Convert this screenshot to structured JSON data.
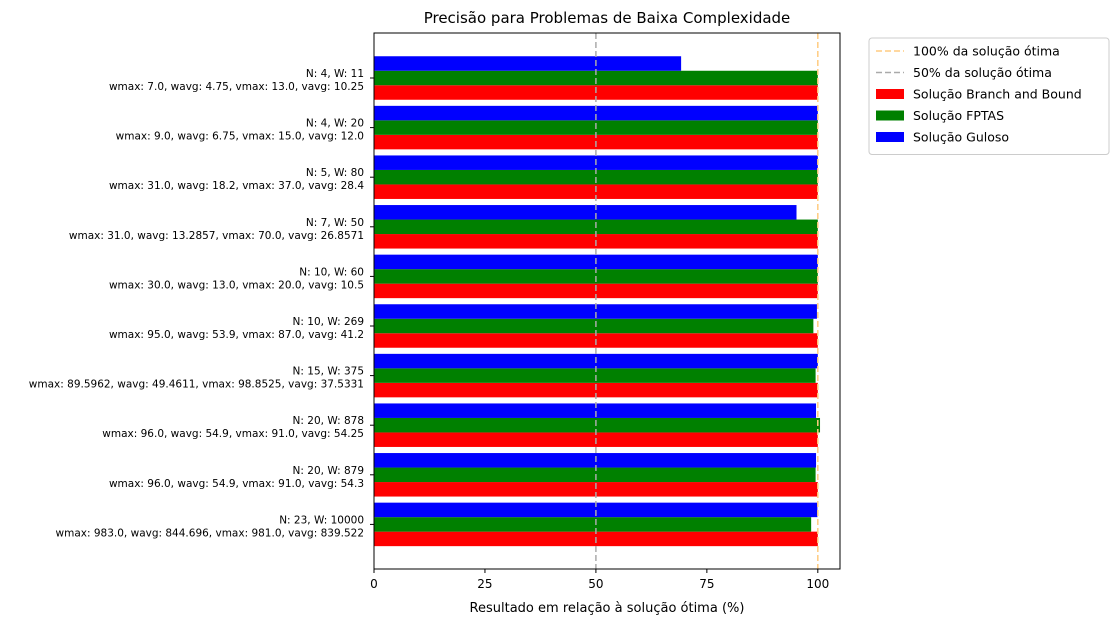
{
  "chart_data": {
    "type": "bar",
    "orientation": "horizontal",
    "title": "Precisão para Problemas de Baixa Complexidade",
    "xlabel": "Resultado em relação à solução ótima (%)",
    "ylabel": "",
    "xlim": [
      0,
      105
    ],
    "xticks": [
      0,
      25,
      50,
      75,
      100
    ],
    "grid": false,
    "legend_position": "outside-top-right",
    "categories": [
      {
        "line1": "N: 4, W:  11",
        "line2": "wmax: 7.0, wavg: 4.75, vmax: 13.0, vavg: 10.25"
      },
      {
        "line1": "N: 4, W:  20",
        "line2": "wmax: 9.0, wavg: 6.75, vmax: 15.0, vavg: 12.0"
      },
      {
        "line1": "N: 5, W:  80",
        "line2": "wmax: 31.0, wavg: 18.2, vmax: 37.0, vavg: 28.4"
      },
      {
        "line1": "N: 7, W:  50",
        "line2": "wmax: 31.0, wavg: 13.2857, vmax: 70.0, vavg: 26.8571"
      },
      {
        "line1": "N: 10, W:  60",
        "line2": "wmax: 30.0, wavg: 13.0, vmax: 20.0, vavg: 10.5"
      },
      {
        "line1": "N: 10, W:  269",
        "line2": "wmax: 95.0, wavg: 53.9, vmax: 87.0, vavg: 41.2"
      },
      {
        "line1": "N: 15, W:  375",
        "line2": "wmax: 89.5962, wavg: 49.4611, vmax: 98.8525, vavg: 37.5331"
      },
      {
        "line1": "N: 20, W:  878",
        "line2": "wmax: 96.0, wavg: 54.9, vmax: 91.0, vavg: 54.25"
      },
      {
        "line1": "N: 20, W:  879",
        "line2": "wmax: 96.0, wavg: 54.9, vmax: 91.0, vavg: 54.3"
      },
      {
        "line1": "N: 23, W:  10000",
        "line2": "wmax: 983.0, wavg: 844.696, vmax: 981.0, vavg: 839.522"
      }
    ],
    "series": [
      {
        "name": "Solução Branch and Bound",
        "color": "#ff0000",
        "values": [
          100,
          100,
          100,
          100,
          100,
          100,
          100,
          100,
          100,
          100
        ]
      },
      {
        "name": "Solução FPTAS",
        "color": "#008000",
        "values": [
          100,
          100,
          100,
          100,
          100,
          99,
          99.5,
          100.5,
          99.5,
          98.5
        ]
      },
      {
        "name": "Solução Guloso",
        "color": "#0000ff",
        "values": [
          69.2,
          100,
          100,
          95.2,
          100,
          99.8,
          100,
          99.6,
          99.6,
          99.9
        ]
      }
    ],
    "reference_lines": [
      {
        "name": "100% da solução ótima",
        "x": 100,
        "color": "#ffcc80",
        "style": "dashed"
      },
      {
        "name": "50% da solução ótima",
        "x": 50,
        "color": "#aaaaaa",
        "style": "dashed"
      }
    ]
  }
}
